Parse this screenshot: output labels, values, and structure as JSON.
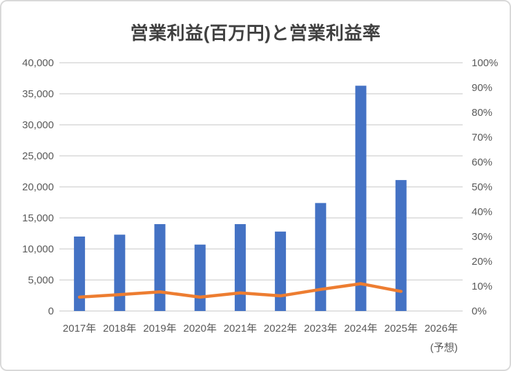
{
  "colors": {
    "bar": "#4472C4",
    "line": "#ED7D31",
    "gridline": "#D9D9D9",
    "axis_text": "#595959",
    "title_text": "#404040",
    "frame_border": "#D9D9D9",
    "background": "#FFFFFF"
  },
  "chart_data": {
    "type": "combo-bar-line",
    "title": "営業利益(百万円)と営業利益率",
    "legend": "none",
    "grid": true,
    "categories": [
      "2017年",
      "2018年",
      "2019年",
      "2020年",
      "2021年",
      "2022年",
      "2023年",
      "2024年",
      "2025年",
      "2026年"
    ],
    "forecast_note": "(予想)",
    "forecast_note_category": "2026年",
    "series": [
      {
        "name": "営業利益(百万円)",
        "type": "bar",
        "axis": "left",
        "color": "#4472C4",
        "values": [
          12000,
          12300,
          14000,
          10700,
          14000,
          12800,
          17400,
          36300,
          21100,
          null
        ]
      },
      {
        "name": "営業利益率",
        "type": "line",
        "axis": "right",
        "color": "#ED7D31",
        "values_percent": [
          5.6,
          6.6,
          7.7,
          5.6,
          7.3,
          6.1,
          8.7,
          11.0,
          7.9,
          null
        ]
      }
    ],
    "left_axis": {
      "min": 0,
      "max": 40000,
      "step": 5000,
      "tick_labels": [
        "0",
        "5,000",
        "10,000",
        "15,000",
        "20,000",
        "25,000",
        "30,000",
        "35,000",
        "40,000"
      ]
    },
    "right_axis": {
      "min": 0,
      "max": 100,
      "step": 10,
      "tick_labels": [
        "0%",
        "10%",
        "20%",
        "30%",
        "40%",
        "50%",
        "60%",
        "70%",
        "80%",
        "90%",
        "100%"
      ]
    }
  }
}
